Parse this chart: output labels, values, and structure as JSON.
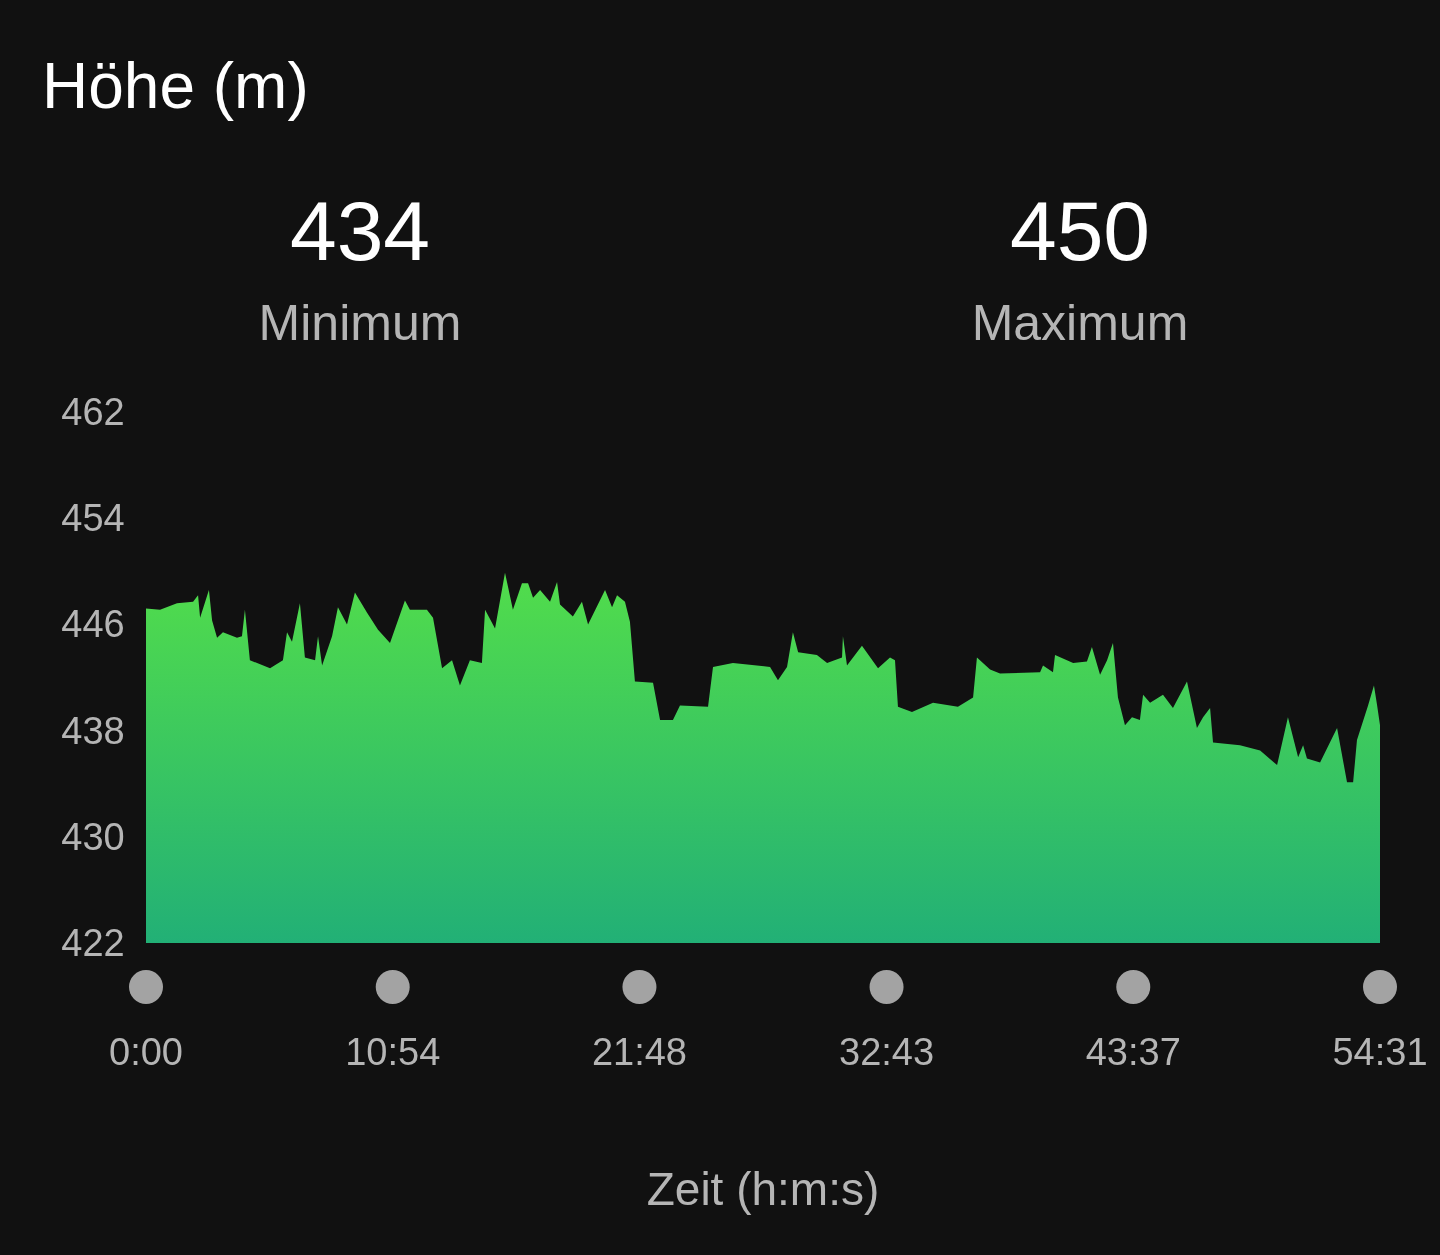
{
  "chart_data": {
    "type": "area",
    "title": "Höhe (m)",
    "annotations": [
      "434",
      "Minimum",
      "450",
      "Maximum"
    ],
    "xlabel": "Zeit (h:m:s)",
    "color": "#4fd548",
    "x": [
      0,
      0.62,
      1.37,
      2.08,
      2.3,
      2.39,
      2.78,
      2.92,
      3.14,
      3.4,
      4.02,
      4.24,
      4.37,
      4.59,
      5.48,
      6.05,
      6.23,
      6.45,
      6.8,
      7.02,
      7.47,
      7.6,
      7.78,
      8.22,
      8.48,
      8.88,
      9.23,
      9.76,
      10.25,
      10.78,
      11.44,
      11.66,
      12.41,
      12.68,
      13.08,
      13.52,
      13.87,
      14.31,
      14.84,
      14.98,
      15.42,
      15.86,
      16.21,
      16.61,
      16.88,
      17.1,
      17.41,
      17.85,
      18.16,
      18.29,
      18.86,
      19.26,
      19.53,
      20.28,
      20.59,
      20.81,
      21.16,
      21.38,
      21.6,
      22.4,
      22.71,
      23.28,
      23.59,
      24.83,
      25.05,
      25.93,
      27.57,
      27.92,
      28.32,
      28.58,
      28.81,
      29.64,
      30.09,
      30.75,
      30.79,
      30.97,
      31.63,
      32.34,
      32.87,
      33.09,
      33.22,
      33.84,
      34.77,
      35.87,
      36.54,
      36.71,
      37.29,
      37.73,
      39.5,
      39.63,
      40.07,
      40.16,
      40.96,
      41.57,
      41.79,
      42.15,
      42.46,
      42.72,
      42.94,
      43.25,
      43.56,
      43.91,
      44.05,
      44.36,
      44.93,
      45.37,
      45.99,
      46.43,
      46.7,
      47.01,
      47.14,
      48.33,
      49.22,
      49.97,
      50.45,
      50.9,
      51.12,
      51.29,
      51.87,
      52.62,
      53.06,
      53.33,
      53.5,
      53.99,
      54.25,
      54.39,
      54.517
    ],
    "values": [
      447.2,
      447.1,
      447.6,
      447.7,
      448.2,
      446.5,
      448.6,
      446.3,
      445.0,
      445.4,
      445.0,
      445.1,
      447.1,
      443.3,
      442.7,
      443.3,
      445.4,
      444.7,
      447.6,
      443.5,
      443.3,
      445.1,
      442.9,
      445.1,
      447.3,
      446.0,
      448.4,
      446.9,
      445.6,
      444.6,
      447.8,
      447.1,
      447.1,
      446.5,
      442.7,
      443.3,
      441.4,
      443.3,
      443.1,
      447.1,
      445.7,
      449.9,
      447.1,
      449.1,
      449.1,
      448.0,
      448.6,
      447.7,
      449.2,
      447.5,
      446.6,
      447.7,
      446.0,
      448.6,
      447.3,
      448.2,
      447.7,
      446.2,
      441.7,
      441.6,
      438.8,
      438.8,
      439.9,
      439.8,
      442.8,
      443.1,
      442.8,
      441.8,
      442.8,
      445.4,
      443.9,
      443.7,
      443.1,
      443.5,
      445.1,
      442.9,
      444.4,
      442.7,
      443.5,
      443.3,
      439.8,
      439.4,
      440.1,
      439.8,
      440.5,
      443.5,
      442.6,
      442.3,
      442.4,
      442.9,
      442.4,
      443.7,
      443.1,
      443.2,
      444.3,
      442.2,
      443.3,
      444.6,
      440.5,
      438.4,
      439.0,
      438.8,
      440.7,
      440.1,
      440.7,
      439.7,
      441.7,
      438.2,
      439.0,
      439.7,
      437.1,
      436.9,
      436.5,
      435.4,
      439.0,
      436.0,
      436.9,
      435.9,
      435.6,
      438.2,
      434.1,
      434.1,
      437.3,
      439.9,
      441.4,
      439.9,
      438.4
    ],
    "xlim": [
      0,
      54.517
    ],
    "xticks": [
      {
        "value": 0,
        "label": "0:00"
      },
      {
        "value": 10.9,
        "label": "10:54"
      },
      {
        "value": 21.8,
        "label": "21:48"
      },
      {
        "value": 32.717,
        "label": "32:43"
      },
      {
        "value": 43.617,
        "label": "43:37"
      },
      {
        "value": 54.517,
        "label": "54:31"
      }
    ],
    "ylim": [
      422,
      462
    ],
    "yticks": [
      422,
      430,
      438,
      446,
      454,
      462
    ]
  }
}
